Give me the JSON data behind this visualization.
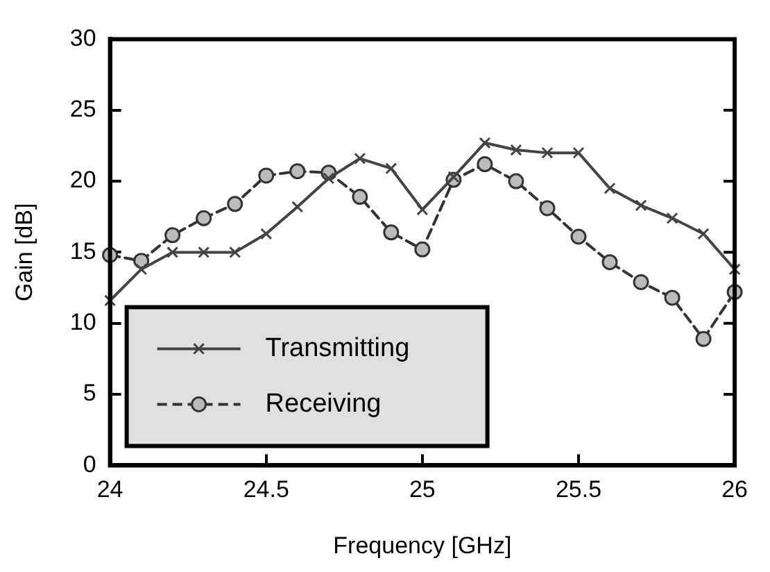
{
  "chart_data": {
    "type": "line",
    "xlabel": "Frequency [GHz]",
    "ylabel": "Gain [dB]",
    "x": [
      24,
      24.1,
      24.2,
      24.3,
      24.4,
      24.5,
      24.6,
      24.7,
      24.8,
      24.9,
      25,
      25.1,
      25.2,
      25.3,
      25.4,
      25.5,
      25.6,
      25.7,
      25.8,
      25.9,
      26
    ],
    "series": [
      {
        "name": "Transmitting",
        "color": "#444444",
        "marker": "cross",
        "line_style": "solid",
        "values": [
          11.6,
          13.8,
          15,
          15,
          15,
          16.3,
          18.2,
          20.2,
          21.6,
          20.9,
          18,
          20.3,
          22.7,
          22.2,
          22,
          22,
          19.5,
          18.3,
          17.4,
          16.3,
          13.8
        ]
      },
      {
        "name": "Receiving",
        "color": "#333333",
        "marker": "circle",
        "line_style": "dashed",
        "values": [
          14.8,
          14.4,
          16.2,
          17.4,
          18.4,
          20.4,
          20.7,
          20.6,
          18.9,
          16.4,
          15.2,
          20.1,
          21.2,
          20,
          18.1,
          16.1,
          14.3,
          12.9,
          11.8,
          8.9,
          12.2
        ]
      }
    ],
    "xlim": [
      24,
      26
    ],
    "xticks": [
      24,
      24.5,
      25,
      25.5,
      26
    ],
    "ylim": [
      0,
      30
    ],
    "yticks": [
      0,
      5,
      10,
      15,
      20,
      25,
      30
    ],
    "grid": false,
    "legend": "bottom left"
  }
}
